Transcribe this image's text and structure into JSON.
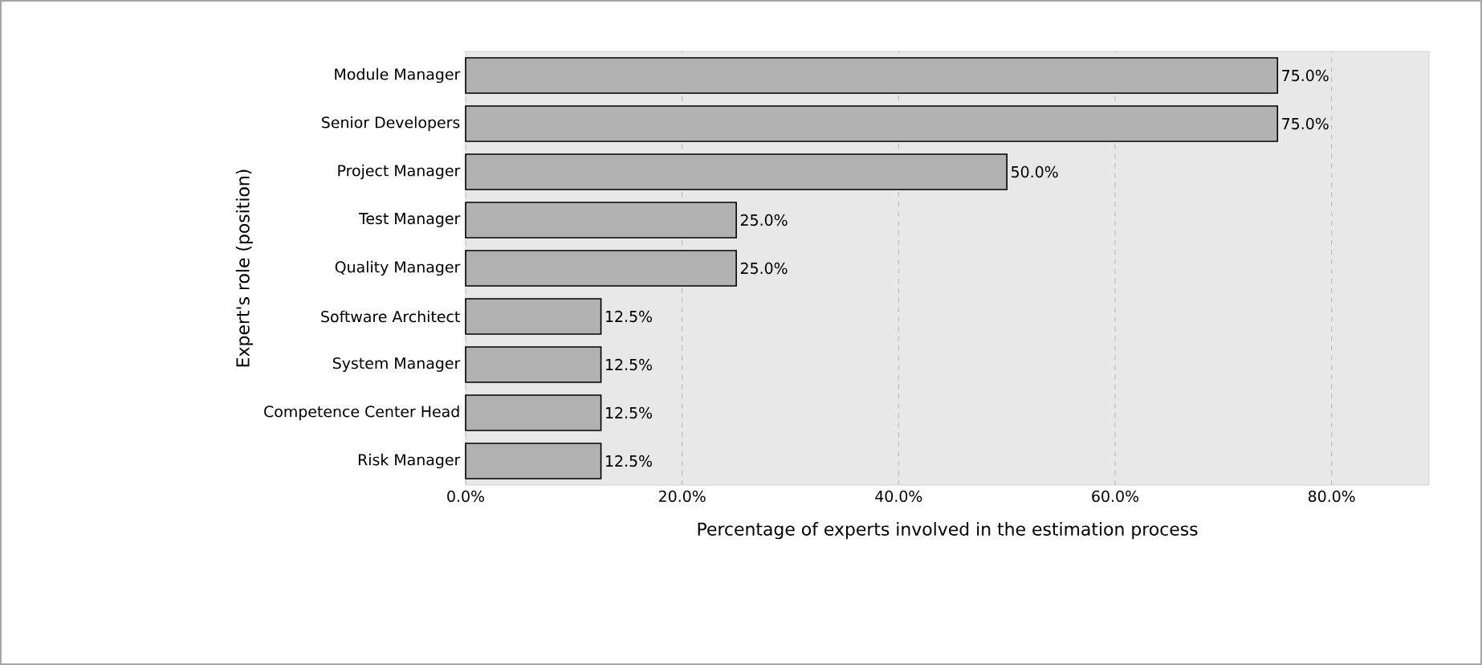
{
  "chart_data": {
    "type": "bar",
    "orientation": "horizontal",
    "categories": [
      "Module Manager",
      "Senior Developers",
      "Project Manager",
      "Test Manager",
      "Quality Manager",
      "Software Architect",
      "System Manager",
      "Competence Center Head",
      "Risk Manager"
    ],
    "values": [
      75,
      75,
      50,
      25,
      25,
      12.5,
      12.5,
      12.5,
      12.5
    ],
    "value_labels": [
      "75.0%",
      "75.0%",
      "50.0%",
      "25.0%",
      "25.0%",
      "12.5%",
      "12.5%",
      "12.5%",
      "12.5%"
    ],
    "color": "#b2b2b2",
    "xlabel": "Percentage of experts involved in the estimation process",
    "ylabel": "Expert's role (position)",
    "xlim": [
      0,
      89
    ],
    "xticks": [
      {
        "value": 0,
        "label": "0.0%"
      },
      {
        "value": 20,
        "label": "20.0%"
      },
      {
        "value": 40,
        "label": "40.0%"
      },
      {
        "value": 60,
        "label": "60.0%"
      },
      {
        "value": 80,
        "label": "80.0%"
      }
    ],
    "grid": "x"
  }
}
